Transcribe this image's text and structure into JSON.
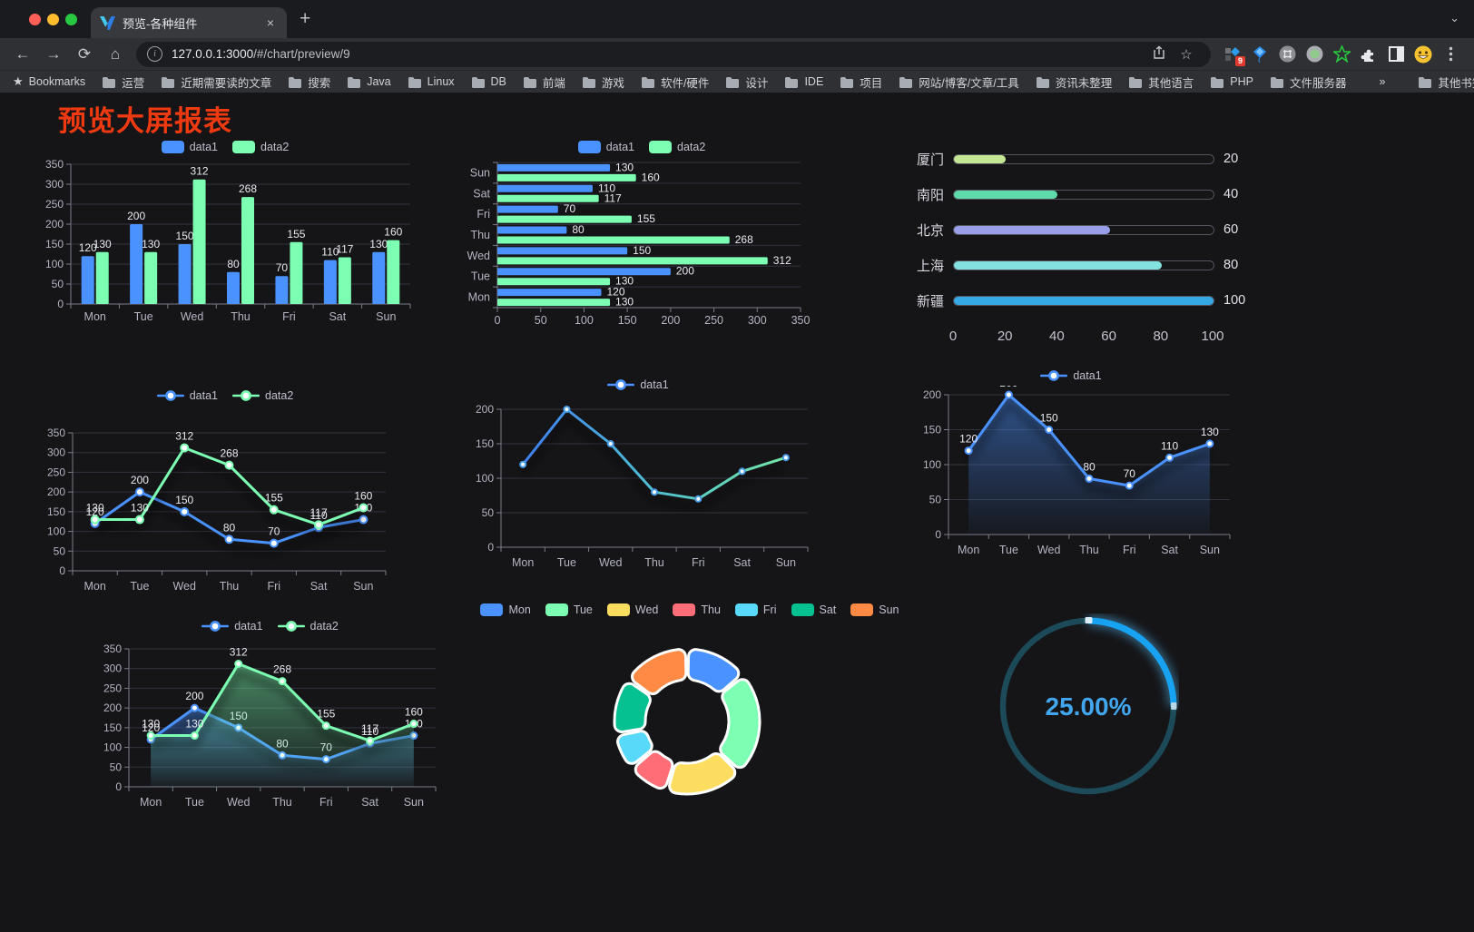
{
  "browser": {
    "tab": {
      "title": "预览-各种组件",
      "close": "×",
      "new_tab": "+"
    },
    "address": {
      "url_host": "127.0.0.1:3000",
      "url_path": "/#/chart/preview/9"
    },
    "bookmarks_bar": {
      "first": "Bookmarks",
      "folders": [
        "运营",
        "近期需要读的文章",
        "搜索",
        "Java",
        "Linux",
        "DB",
        "前端",
        "游戏",
        "软件/硬件",
        "设计",
        "IDE",
        "项目",
        "网站/博客/文章/工具",
        "资讯未整理",
        "其他语言",
        "PHP",
        "文件服务器"
      ],
      "overflow": "»",
      "other": "其他书签"
    },
    "extension_badge": "9"
  },
  "page": {
    "title": "预览大屏报表",
    "title_color": "#ee3911"
  },
  "chart_data": [
    {
      "id": "bar-vertical",
      "type": "bar",
      "legend_position": "top",
      "grid": true,
      "categories": [
        "Mon",
        "Tue",
        "Wed",
        "Thu",
        "Fri",
        "Sat",
        "Sun"
      ],
      "series": [
        {
          "name": "data1",
          "color": "#4992ff",
          "values": [
            120,
            200,
            150,
            80,
            70,
            110,
            130
          ]
        },
        {
          "name": "data2",
          "color": "#7cffb2",
          "values": [
            130,
            130,
            312,
            268,
            155,
            117,
            160
          ]
        }
      ],
      "ylim": [
        0,
        350
      ],
      "ytick_step": 50
    },
    {
      "id": "bar-horizontal",
      "type": "bar",
      "orientation": "horizontal",
      "legend_position": "top",
      "categories": [
        "Mon",
        "Tue",
        "Wed",
        "Thu",
        "Fri",
        "Sat",
        "Sun"
      ],
      "series": [
        {
          "name": "data1",
          "color": "#4992ff",
          "values": [
            120,
            200,
            150,
            80,
            70,
            110,
            130
          ]
        },
        {
          "name": "data2",
          "color": "#7cffb2",
          "values": [
            130,
            130,
            312,
            268,
            155,
            117,
            160
          ]
        }
      ],
      "xlim": [
        0,
        350
      ],
      "xtick_step": 50
    },
    {
      "id": "progress-bars",
      "type": "bar",
      "variant": "progress",
      "items": [
        {
          "label": "厦门",
          "value": 20,
          "color": "#c3e794"
        },
        {
          "label": "南阳",
          "value": 40,
          "color": "#5dd9aa"
        },
        {
          "label": "北京",
          "value": 60,
          "color": "#989ee8"
        },
        {
          "label": "上海",
          "value": 80,
          "color": "#83e2df"
        },
        {
          "label": "新疆",
          "value": 100,
          "color": "#35a8e6"
        }
      ],
      "xlim": [
        0,
        100
      ],
      "xticks": [
        0,
        20,
        40,
        60,
        80,
        100
      ]
    },
    {
      "id": "line-two-series",
      "type": "line",
      "legend_position": "top",
      "labels": true,
      "categories": [
        "Mon",
        "Tue",
        "Wed",
        "Thu",
        "Fri",
        "Sat",
        "Sun"
      ],
      "series": [
        {
          "name": "data1",
          "color": "#4992ff",
          "values": [
            120,
            200,
            150,
            80,
            70,
            110,
            130
          ]
        },
        {
          "name": "data2",
          "color": "#7cffb2",
          "values": [
            130,
            130,
            312,
            268,
            155,
            117,
            160
          ]
        }
      ],
      "ylim": [
        0,
        350
      ],
      "ytick_step": 50
    },
    {
      "id": "line-gradient",
      "type": "line",
      "legend_position": "top",
      "labels": false,
      "categories": [
        "Mon",
        "Tue",
        "Wed",
        "Thu",
        "Fri",
        "Sat",
        "Sun"
      ],
      "series": [
        {
          "name": "data1",
          "color": "#4992ff",
          "gradient": [
            "#3f7ef2",
            "#4fc0cf",
            "#72e6a6"
          ],
          "values": [
            120,
            200,
            150,
            80,
            70,
            110,
            130
          ]
        }
      ],
      "ylim": [
        0,
        200
      ],
      "ytick_step": 50
    },
    {
      "id": "area-single",
      "type": "area",
      "legend_position": "top",
      "labels": true,
      "categories": [
        "Mon",
        "Tue",
        "Wed",
        "Thu",
        "Fri",
        "Sat",
        "Sun"
      ],
      "series": [
        {
          "name": "data1",
          "color": "#4992ff",
          "values": [
            120,
            200,
            150,
            80,
            70,
            110,
            130
          ]
        }
      ],
      "ylim": [
        0,
        200
      ],
      "ytick_step": 50
    },
    {
      "id": "area-two-series",
      "type": "area",
      "legend_position": "top",
      "labels": true,
      "categories": [
        "Mon",
        "Tue",
        "Wed",
        "Thu",
        "Fri",
        "Sat",
        "Sun"
      ],
      "series": [
        {
          "name": "data1",
          "color": "#4992ff",
          "values": [
            120,
            200,
            150,
            80,
            70,
            110,
            130
          ]
        },
        {
          "name": "data2",
          "color": "#7cffb2",
          "values": [
            130,
            130,
            312,
            268,
            155,
            117,
            160
          ]
        }
      ],
      "ylim": [
        0,
        350
      ],
      "ytick_step": 50
    },
    {
      "id": "donut",
      "type": "pie",
      "legend_position": "top",
      "categories": [
        "Mon",
        "Tue",
        "Wed",
        "Thu",
        "Fri",
        "Sat",
        "Sun"
      ],
      "values": [
        120,
        200,
        150,
        80,
        70,
        110,
        130
      ],
      "colors": [
        "#4992ff",
        "#7cffb2",
        "#fddd60",
        "#ff6e76",
        "#58d9f9",
        "#05c091",
        "#ff8a45"
      ]
    },
    {
      "id": "gauge",
      "type": "gauge",
      "value": 25,
      "display": "25.00%",
      "arc_color": "#17a2f2",
      "track_color": "#1d4a58",
      "text_color": "#41a6ee"
    }
  ]
}
